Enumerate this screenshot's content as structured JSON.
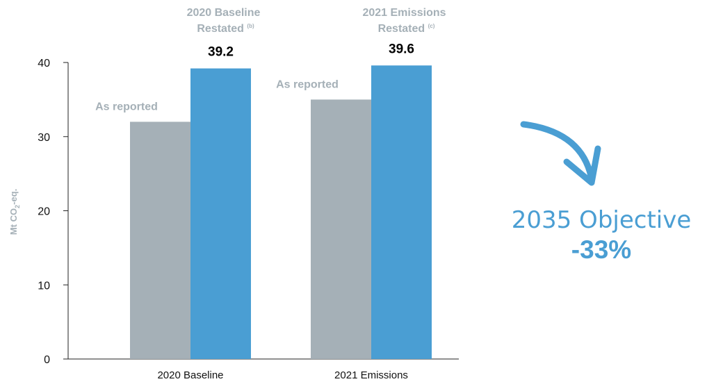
{
  "chart_data": {
    "type": "bar",
    "categories": [
      "2020 Baseline",
      "2021 Emissions"
    ],
    "series": [
      {
        "name": "As reported",
        "values": [
          32.0,
          35.0
        ],
        "color": "#a5b0b7",
        "show_value_labels": false
      },
      {
        "values": [
          39.2,
          39.6
        ],
        "value_labels": [
          "39.2",
          "39.6"
        ],
        "color": "#4a9ed3"
      }
    ],
    "series_labels": [
      {
        "line1": "2020 Baseline",
        "line2": "Restated",
        "note": "(b)"
      },
      {
        "line1": "2021 Emissions",
        "line2": "Restated",
        "note": "(c)"
      }
    ],
    "ylabel_prefix": "Mt CO",
    "ylabel_sub": "2",
    "ylabel_suffix": "-eq.",
    "ylim": [
      0,
      40
    ],
    "yticks": [
      "0",
      "10",
      "20",
      "30",
      "40"
    ],
    "grid": false
  },
  "objective": {
    "title": "2035 Objective",
    "value": "-33%",
    "arrow": "curved-down-arrow-icon",
    "color": "#4a9ed3"
  }
}
